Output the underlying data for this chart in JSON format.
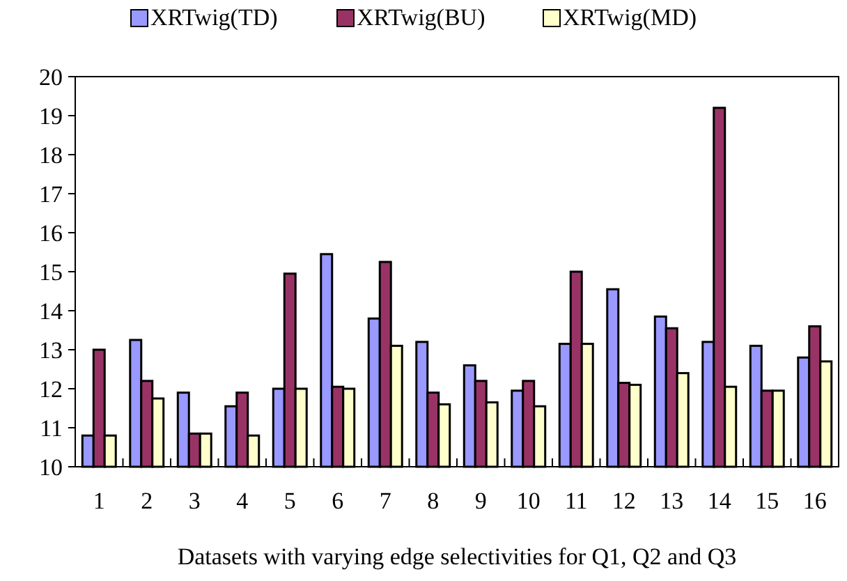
{
  "chart_data": {
    "type": "bar",
    "xlabel": "Datasets with varying edge selectivities for Q1, Q2 and Q3",
    "categories": [
      "1",
      "2",
      "3",
      "4",
      "5",
      "6",
      "7",
      "8",
      "9",
      "10",
      "11",
      "12",
      "13",
      "14",
      "15",
      "16"
    ],
    "series": [
      {
        "name": "XRTwig(TD)",
        "color": "#9999ff",
        "values": [
          10.8,
          13.25,
          11.9,
          11.55,
          12.0,
          15.45,
          13.8,
          13.2,
          12.6,
          11.95,
          13.15,
          14.55,
          13.85,
          13.2,
          13.1,
          12.8
        ]
      },
      {
        "name": "XRTwig(BU)",
        "color": "#993366",
        "values": [
          13.0,
          12.2,
          10.85,
          11.9,
          14.95,
          12.05,
          15.25,
          11.9,
          12.2,
          12.2,
          15.0,
          12.15,
          13.55,
          19.2,
          11.95,
          13.6
        ]
      },
      {
        "name": "XRTwig(MD)",
        "color": "#ffffcc",
        "values": [
          10.8,
          11.75,
          10.85,
          10.8,
          12.0,
          12.0,
          13.1,
          11.6,
          11.65,
          11.55,
          13.15,
          12.1,
          12.4,
          12.05,
          11.95,
          12.7
        ]
      }
    ],
    "ylim": [
      10,
      20
    ],
    "yticks": [
      10,
      11,
      12,
      13,
      14,
      15,
      16,
      17,
      18,
      19,
      20
    ],
    "grid": false,
    "legend": "top"
  }
}
